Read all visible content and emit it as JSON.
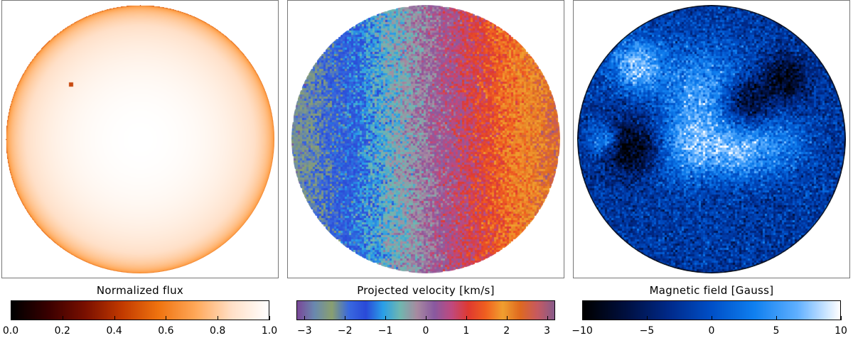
{
  "panels": [
    {
      "colorbar_label": "Normalized flux",
      "ticks": [
        "0.0",
        "0.2",
        "0.4",
        "0.6",
        "0.8",
        "1.0"
      ],
      "tick_values": [
        0.0,
        0.2,
        0.4,
        0.6,
        0.8,
        1.0
      ],
      "range": [
        0.0,
        1.0
      ],
      "colormap": [
        "#000000",
        "#3a0000",
        "#7a1000",
        "#c23a00",
        "#f07410",
        "#ffa858",
        "#ffe0c8",
        "#ffffff"
      ]
    },
    {
      "colorbar_label": "Projected velocity [km/s]",
      "ticks": [
        "−3",
        "−2",
        "−1",
        "0",
        "1",
        "2",
        "3"
      ],
      "tick_values": [
        -3,
        -2,
        -1,
        0,
        1,
        2,
        3
      ],
      "range": [
        -3.2,
        3.2
      ],
      "colormap": [
        "#7a4a9a",
        "#6a8ab0",
        "#8aa070",
        "#3a6ae0",
        "#2a4ad8",
        "#2aa0e8",
        "#70b8b0",
        "#a88aa0",
        "#8a5aa0",
        "#c04a80",
        "#e03a30",
        "#f06020",
        "#f0a030",
        "#e06a20",
        "#c85a60",
        "#8a5a8a"
      ]
    },
    {
      "colorbar_label": "Magnetic field [Gauss]",
      "ticks": [
        "−10",
        "−5",
        "0",
        "5",
        "10"
      ],
      "tick_values": [
        -10,
        -5,
        0,
        5,
        10
      ],
      "range": [
        -10,
        10
      ],
      "colormap": [
        "#000000",
        "#001040",
        "#002a8a",
        "#0050c8",
        "#1080f0",
        "#60b0ff",
        "#ffffff"
      ]
    }
  ]
}
